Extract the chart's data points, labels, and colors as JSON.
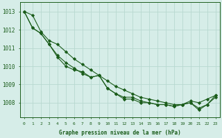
{
  "xlabel": "Graphe pression niveau de la mer (hPa)",
  "bg_color": "#d6ede8",
  "grid_color": "#b8d8d0",
  "line_color": "#1a5c1a",
  "marker_color": "#1a5c1a",
  "x": [
    0,
    1,
    2,
    3,
    4,
    5,
    6,
    7,
    8,
    9,
    10,
    11,
    12,
    13,
    14,
    15,
    16,
    17,
    18,
    19,
    20,
    21,
    22,
    23
  ],
  "ylim": [
    1007.2,
    1013.5
  ],
  "yticks": [
    1008,
    1009,
    1010,
    1011,
    1012,
    1013
  ],
  "line1": [
    1013.0,
    1012.8,
    1011.9,
    1011.4,
    1011.2,
    1010.8,
    1010.4,
    1010.1,
    1009.8,
    1009.5,
    1009.2,
    1008.9,
    1008.7,
    1008.5,
    1008.3,
    1008.2,
    1008.1,
    1008.0,
    1007.9,
    1007.9,
    1008.1,
    1008.0,
    1008.2,
    1008.4
  ],
  "line2": [
    1013.0,
    1012.1,
    1011.8,
    1011.2,
    1010.6,
    1010.2,
    1009.9,
    1009.6,
    1009.4,
    1009.5,
    1008.8,
    1008.5,
    1008.3,
    1008.3,
    1008.1,
    1008.0,
    1007.9,
    1007.9,
    1007.8,
    1007.9,
    1008.0,
    1007.6,
    1007.9,
    1008.4
  ],
  "line3": [
    1013.0,
    1012.1,
    1011.8,
    1011.2,
    1010.5,
    1010.0,
    1009.8,
    1009.7,
    1009.4,
    1009.5,
    1008.8,
    1008.5,
    1008.2,
    1008.2,
    1008.0,
    1008.0,
    1007.9,
    1007.9,
    1007.8,
    1007.9,
    1008.0,
    1007.7,
    1007.9,
    1008.3
  ],
  "tick_label_color": "#1a5c1a",
  "axis_label_color": "#1a5c1a",
  "xlabel_fontsize": 5.5,
  "ytick_fontsize": 5.5,
  "xtick_fontsize": 4.5
}
